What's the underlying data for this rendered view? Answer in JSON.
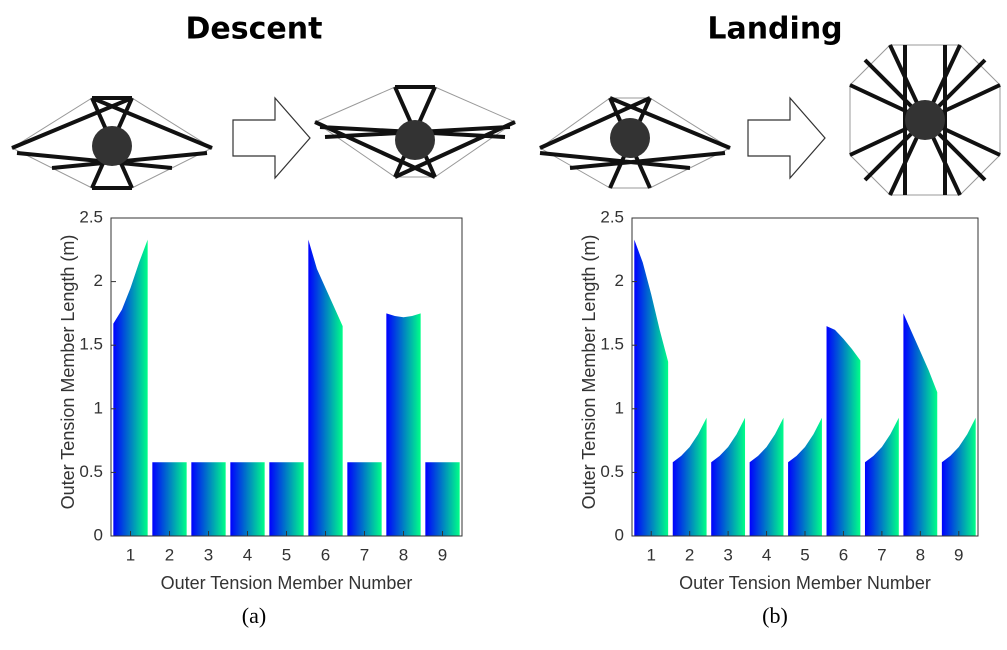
{
  "chart_data": [
    {
      "type": "bar",
      "title": "Descent",
      "panel_label": "(a)",
      "xlabel": "Outer Tension Member Number",
      "ylabel": "Outer Tension Member Length (m)",
      "categories": [
        "1",
        "2",
        "3",
        "4",
        "5",
        "6",
        "7",
        "8",
        "9"
      ],
      "values": [
        [
          1.67,
          1.78,
          1.95,
          2.15,
          2.33
        ],
        [
          0.58,
          0.58,
          0.58,
          0.58,
          0.58
        ],
        [
          0.58,
          0.58,
          0.58,
          0.58,
          0.58
        ],
        [
          0.58,
          0.58,
          0.58,
          0.58,
          0.58
        ],
        [
          0.58,
          0.58,
          0.58,
          0.58,
          0.58
        ],
        [
          2.33,
          2.1,
          1.95,
          1.8,
          1.65
        ],
        [
          0.58,
          0.58,
          0.58,
          0.58,
          0.58
        ],
        [
          1.75,
          1.73,
          1.72,
          1.73,
          1.75
        ],
        [
          0.58,
          0.58,
          0.58,
          0.58,
          0.58
        ]
      ],
      "color_start": "#0000ff",
      "color_end": "#00ff88",
      "ylim": [
        0,
        2.5
      ],
      "yticks": [
        0,
        0.5,
        1,
        1.5,
        2,
        2.5
      ]
    },
    {
      "type": "bar",
      "title": "Landing",
      "panel_label": "(b)",
      "xlabel": "Outer Tension Member Number",
      "ylabel": "Outer Tension Member Length (m)",
      "categories": [
        "1",
        "2",
        "3",
        "4",
        "5",
        "6",
        "7",
        "8",
        "9"
      ],
      "values": [
        [
          2.33,
          2.15,
          1.9,
          1.62,
          1.37
        ],
        [
          0.58,
          0.63,
          0.7,
          0.8,
          0.93
        ],
        [
          0.58,
          0.63,
          0.7,
          0.8,
          0.93
        ],
        [
          0.58,
          0.63,
          0.7,
          0.8,
          0.93
        ],
        [
          0.58,
          0.63,
          0.7,
          0.8,
          0.93
        ],
        [
          1.65,
          1.62,
          1.55,
          1.47,
          1.38
        ],
        [
          0.58,
          0.63,
          0.7,
          0.8,
          0.93
        ],
        [
          1.75,
          1.6,
          1.45,
          1.3,
          1.13
        ],
        [
          0.58,
          0.63,
          0.7,
          0.8,
          0.93
        ]
      ],
      "color_start": "#0000ff",
      "color_end": "#00ff88",
      "ylim": [
        0,
        2.5
      ],
      "yticks": [
        0,
        0.5,
        1,
        1.5,
        2,
        2.5
      ]
    }
  ]
}
